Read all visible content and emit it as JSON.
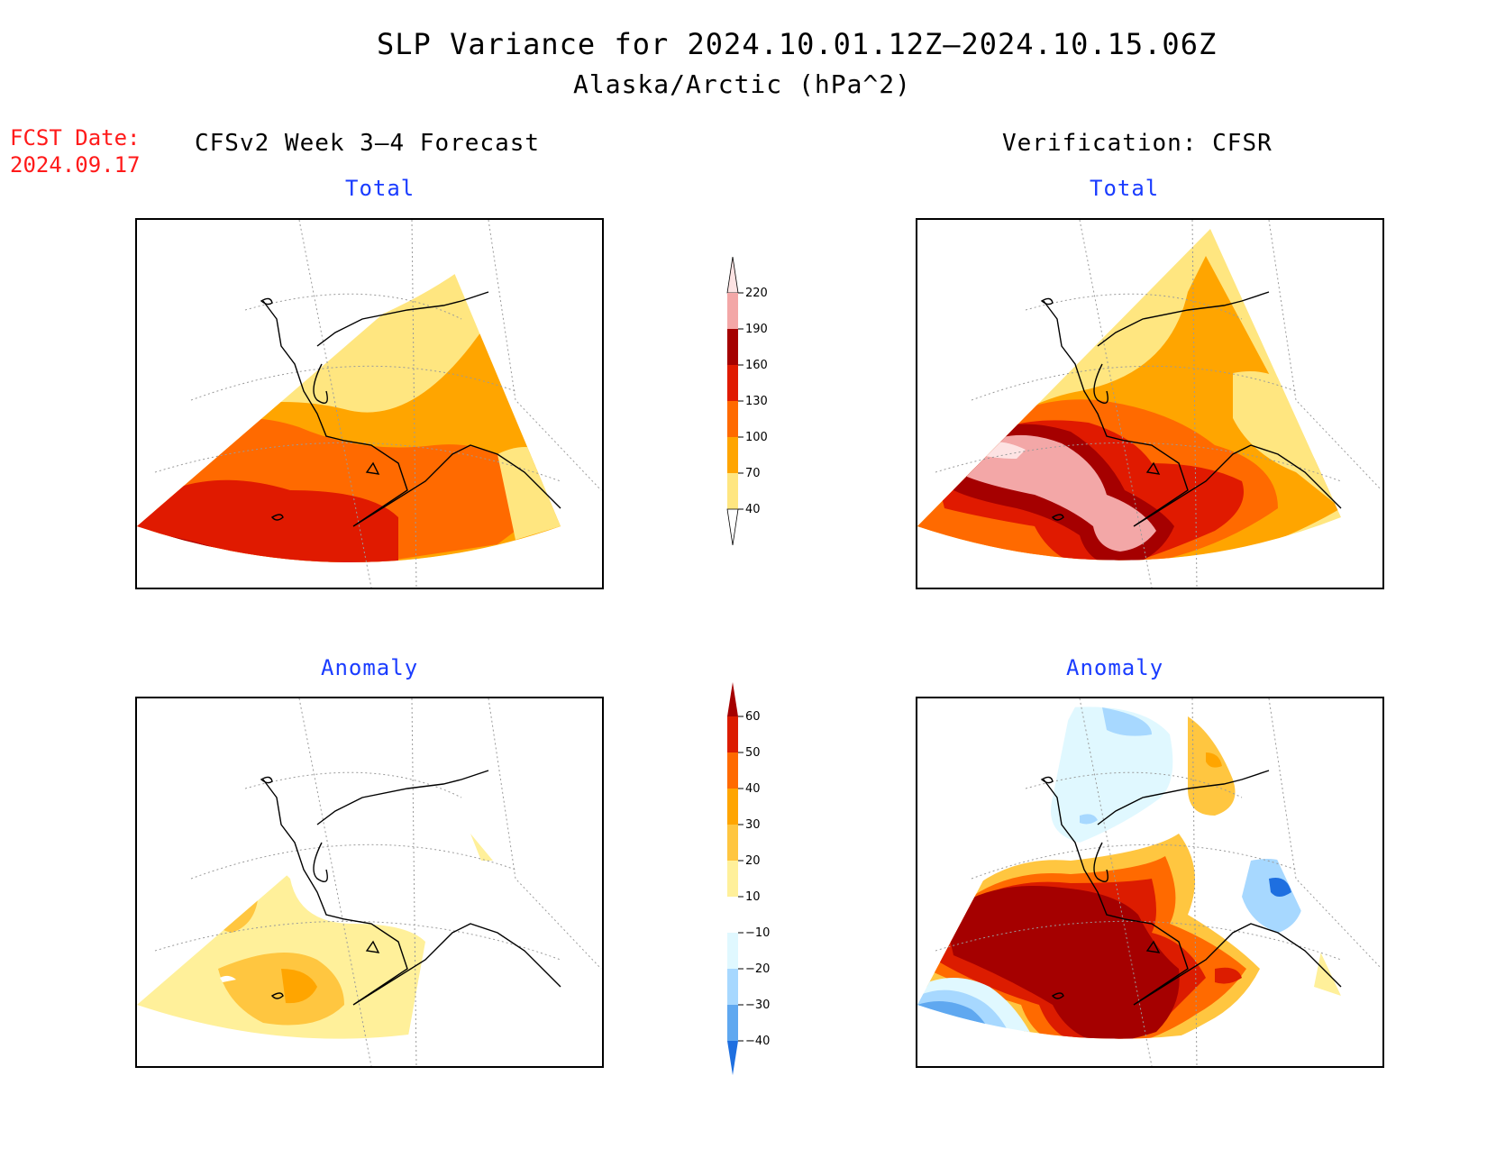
{
  "title": "SLP Variance for 2024.10.01.12Z–2024.10.15.06Z",
  "subtitle": "Alaska/Arctic (hPa^2)",
  "fcst_date": {
    "label": "FCST Date:",
    "value": "2024.09.17"
  },
  "left_column": {
    "heading": "CFSv2 Week 3–4 Forecast"
  },
  "right_column": {
    "heading": "Verification: CFSR"
  },
  "panels": {
    "top_left": {
      "label": "Total"
    },
    "top_right": {
      "label": "Total"
    },
    "bottom_left": {
      "label": "Anomaly"
    },
    "bottom_right": {
      "label": "Anomaly"
    }
  },
  "colorbar_total": {
    "levels": [
      "220",
      "190",
      "160",
      "130",
      "100",
      "70",
      "40"
    ],
    "colors": [
      "#fde3e3",
      "#f3a7a7",
      "#a50000",
      "#e01a00",
      "#ff6a00",
      "#ffa500",
      "#ffe680"
    ]
  },
  "colorbar_anomaly": {
    "levels": [
      "60",
      "50",
      "40",
      "30",
      "20",
      "10",
      "−10",
      "−20",
      "−30",
      "−40"
    ],
    "colors": [
      "#a50000",
      "#dc1c00",
      "#ff6a00",
      "#ffa500",
      "#ffc640",
      "#fff09a",
      "#ffffff",
      "#e0f8ff",
      "#a7d8ff",
      "#5fa8f0",
      "#1e6fe0"
    ]
  },
  "palette": {
    "c40": "#ffe680",
    "c70": "#ffa500",
    "c100": "#ff6a00",
    "c130": "#e01a00",
    "c160": "#a50000",
    "c190": "#f3a7a7",
    "c220": "#fde3e3",
    "a10": "#fff09a",
    "a20": "#ffc640",
    "a30": "#ffa500",
    "a40": "#ff6a00",
    "a50": "#dc1c00",
    "a60": "#a50000",
    "n10": "#e0f8ff",
    "n20": "#a7d8ff",
    "n30": "#5fa8f0",
    "n40": "#1e6fe0"
  }
}
